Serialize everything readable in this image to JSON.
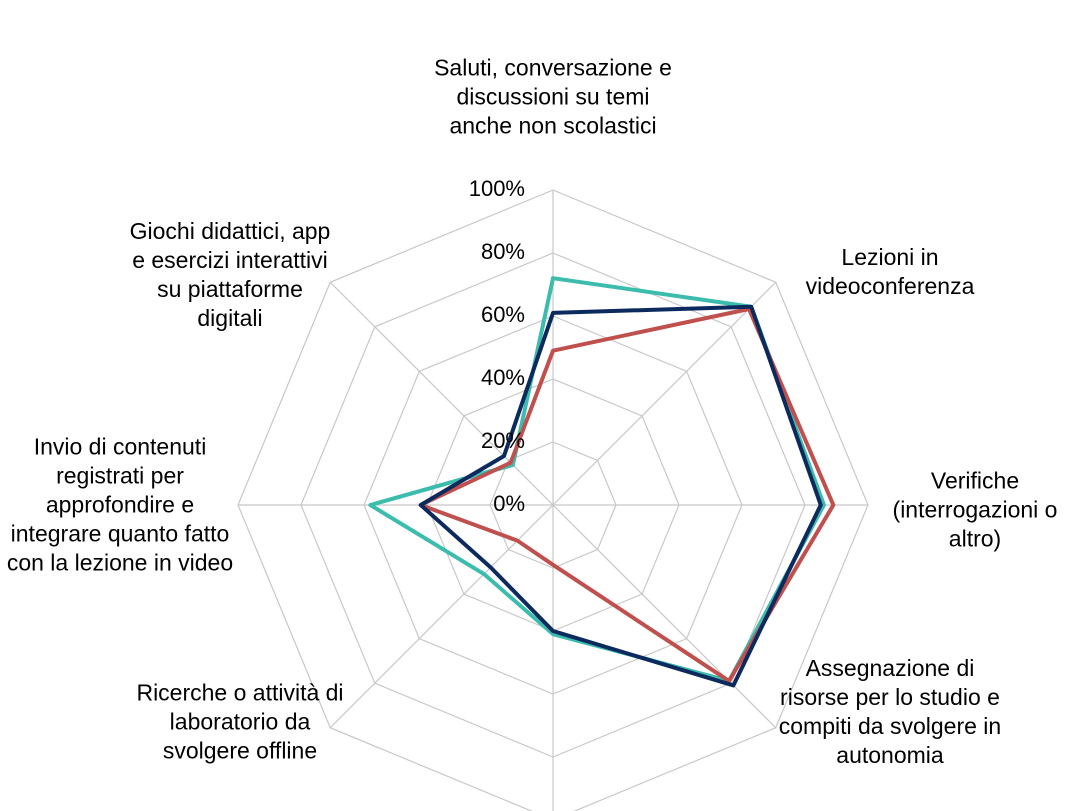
{
  "chart_data": {
    "type": "radar",
    "categories": [
      "Saluti, conversazione e discussioni su temi anche non scolastici",
      "Lezioni in videoconferenza",
      "Verifiche (interrogazioni o altro)",
      "Assegnazione di risorse per lo studio e compiti da svolgere in autonomia",
      null,
      "Ricerche o attività di laboratorio da svolgere offline",
      "Invio di contenuti registrati per approfondire e integrare quanto fatto con la lezione in video",
      "Giochi didattici, app e esercizi interattivi su piattaforme digitali"
    ],
    "series": [
      {
        "color": "#3cbcad",
        "values": [
          72,
          89,
          86,
          79,
          41,
          31,
          58,
          18
        ]
      },
      {
        "color": "#c0504d",
        "values": [
          49,
          88,
          89,
          79,
          19,
          16,
          42,
          19
        ]
      },
      {
        "color": "#0d2a5e",
        "values": [
          61,
          89,
          85,
          81,
          40,
          28,
          42,
          22
        ]
      }
    ],
    "ylim": [
      0,
      100
    ],
    "yticks": [
      {
        "value": 0,
        "label": "0%"
      },
      {
        "value": 20,
        "label": "20%"
      },
      {
        "value": 40,
        "label": "40%"
      },
      {
        "value": 60,
        "label": "60%"
      },
      {
        "value": 80,
        "label": "80%"
      },
      {
        "value": 100,
        "label": "100%"
      }
    ],
    "grid": true
  }
}
